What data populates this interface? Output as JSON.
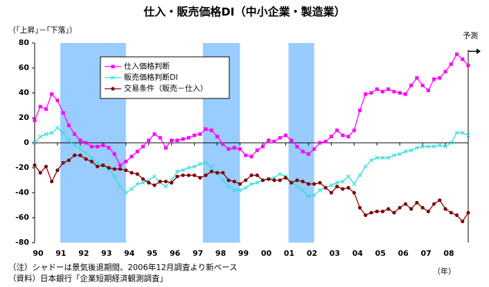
{
  "chart_data": {
    "type": "line",
    "title": "仕入・販売価格DI（中小企業・製造業）",
    "y_label": "（｢上昇｣－｢下落｣）",
    "x_label": "（年）",
    "forecast_label": "予測",
    "annotations": [
      "（注）シャドーは景気後退期間、2006年12月調査より新ベース",
      "（資料）日本銀行「企業短期経済観測調査」"
    ],
    "categories": [
      "90",
      null,
      null,
      null,
      "91",
      null,
      null,
      null,
      "92",
      null,
      null,
      null,
      "93",
      null,
      null,
      null,
      "94",
      null,
      null,
      null,
      "95",
      null,
      null,
      null,
      "96",
      null,
      null,
      null,
      "97",
      null,
      null,
      null,
      "98",
      null,
      null,
      null,
      "99",
      null,
      null,
      null,
      "00",
      null,
      null,
      null,
      "01",
      null,
      null,
      null,
      "02",
      null,
      null,
      null,
      "03",
      null,
      null,
      null,
      "04",
      null,
      null,
      null,
      "05",
      null,
      null,
      null,
      "06",
      null,
      null,
      null,
      "07",
      null,
      null,
      null,
      "08",
      null,
      null,
      null,
      null
    ],
    "shaded_periods": [
      {
        "from": 5,
        "to": 16
      },
      {
        "from": 30,
        "to": 36
      },
      {
        "from": 45,
        "to": 49
      }
    ],
    "shade_color": "#99ccff",
    "series": [
      {
        "name": "仕入価格判断",
        "color": "#ff00ff",
        "marker": "square",
        "values": [
          18,
          29,
          27,
          39,
          34,
          24,
          14,
          7,
          2,
          0,
          -3,
          -3,
          -2,
          -4,
          -9,
          -18,
          -15,
          -11,
          -7,
          -3,
          2,
          7,
          4,
          -4,
          2,
          2,
          3,
          4,
          6,
          7,
          11,
          10,
          5,
          -1,
          -5,
          -4,
          -5,
          -10,
          -11,
          -6,
          -3,
          2,
          1,
          4,
          6,
          2,
          -3,
          -7,
          -9,
          -5,
          0,
          1,
          5,
          10,
          6,
          5,
          10,
          26,
          39,
          40,
          43,
          41,
          43,
          41,
          40,
          39,
          46,
          52,
          46,
          42,
          51,
          52,
          57,
          63,
          71,
          67,
          62
        ]
      },
      {
        "name": "販売価格判断DI",
        "color": "#33dddd",
        "marker": "x",
        "values": [
          0,
          5,
          7,
          8,
          12,
          8,
          2,
          -2,
          -5,
          -8,
          -12,
          -16,
          -18,
          -21,
          -27,
          -35,
          -40,
          -37,
          -33,
          -32,
          -30,
          -27,
          -32,
          -35,
          -30,
          -23,
          -22,
          -20,
          -19,
          -17,
          -16,
          -19,
          -24,
          -30,
          -35,
          -38,
          -38,
          -36,
          -33,
          -32,
          -30,
          -29,
          -28,
          -25,
          -27,
          -31,
          -35,
          -38,
          -43,
          -42,
          -38,
          -36,
          -34,
          -32,
          -31,
          -27,
          -33,
          -26,
          -19,
          -14,
          -12,
          -12,
          -12,
          -10,
          -9,
          -7,
          -6,
          -4,
          -3,
          -3,
          -3,
          -2,
          -3,
          0,
          8,
          8,
          6
        ]
      },
      {
        "name": "交易条件（販売－仕入）",
        "color": "#800000",
        "marker": "circle",
        "values": [
          -18,
          -24,
          -19,
          -31,
          -22,
          -16,
          -14,
          -10,
          -10,
          -13,
          -15,
          -19,
          -18,
          -20,
          -21,
          -21,
          -22,
          -24,
          -25,
          -29,
          -32,
          -34,
          -31,
          -31,
          -32,
          -27,
          -26,
          -26,
          -26,
          -28,
          -26,
          -23,
          -24,
          -24,
          -30,
          -31,
          -33,
          -30,
          -26,
          -26,
          -30,
          -29,
          -30,
          -30,
          -28,
          -32,
          -30,
          -31,
          -33,
          -33,
          -32,
          -36,
          -40,
          -35,
          -37,
          -36,
          -40,
          -52,
          -58,
          -56,
          -55,
          -55,
          -53,
          -56,
          -52,
          -49,
          -53,
          -48,
          -52,
          -55,
          -49,
          -46,
          -53,
          -56,
          -58,
          -63,
          -56
        ]
      }
    ],
    "ylim": [
      -80,
      80
    ],
    "yticks": [
      -80,
      -60,
      -40,
      -20,
      0,
      20,
      40,
      60,
      80
    ],
    "legend": "top-left"
  }
}
